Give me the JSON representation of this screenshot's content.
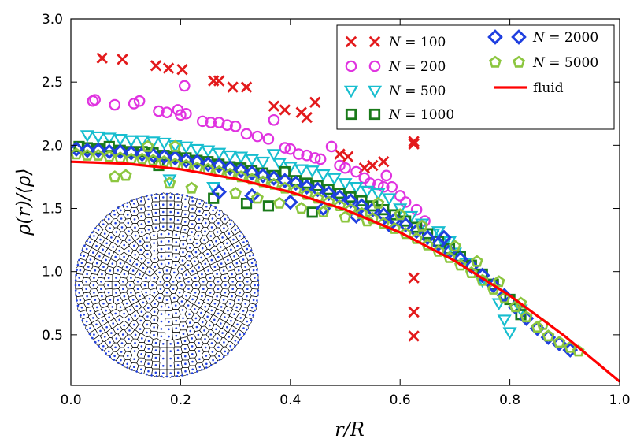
{
  "chart_data": {
    "type": "scatter",
    "xlabel": "r/R",
    "ylabel": "ρ(r)/⟨ρ⟩",
    "xlim": [
      0.0,
      1.0
    ],
    "ylim": [
      0.1,
      3.0
    ],
    "xticks": [
      "0.0",
      "0.2",
      "0.4",
      "0.6",
      "0.8",
      "1.0"
    ],
    "yticks": [
      "0.5",
      "1.0",
      "1.5",
      "2.0",
      "2.5",
      "3.0"
    ],
    "legend_position": "top-right",
    "series": [
      {
        "name": "N = 100",
        "label_var": "N",
        "label_eq": " = 100",
        "marker": "x",
        "color": "#e31a1c",
        "points": [
          [
            0.057,
            2.69
          ],
          [
            0.094,
            2.68
          ],
          [
            0.155,
            2.63
          ],
          [
            0.178,
            2.61
          ],
          [
            0.203,
            2.6
          ],
          [
            0.26,
            2.51
          ],
          [
            0.27,
            2.51
          ],
          [
            0.295,
            2.46
          ],
          [
            0.32,
            2.46
          ],
          [
            0.37,
            2.31
          ],
          [
            0.39,
            2.28
          ],
          [
            0.42,
            2.26
          ],
          [
            0.43,
            2.22
          ],
          [
            0.445,
            2.34
          ],
          [
            0.49,
            1.93
          ],
          [
            0.505,
            1.91
          ],
          [
            0.535,
            1.82
          ],
          [
            0.55,
            1.84
          ],
          [
            0.57,
            1.87
          ],
          [
            0.625,
            2.03
          ],
          [
            0.625,
            2.01
          ],
          [
            0.625,
            0.95
          ],
          [
            0.625,
            0.68
          ],
          [
            0.625,
            0.49
          ]
        ]
      },
      {
        "name": "N = 200",
        "label_var": "N",
        "label_eq": " = 200",
        "marker": "circle",
        "color": "#e033e0",
        "points": [
          [
            0.04,
            2.35
          ],
          [
            0.044,
            2.36
          ],
          [
            0.08,
            2.32
          ],
          [
            0.115,
            2.33
          ],
          [
            0.125,
            2.35
          ],
          [
            0.16,
            2.27
          ],
          [
            0.175,
            2.26
          ],
          [
            0.195,
            2.28
          ],
          [
            0.2,
            2.24
          ],
          [
            0.21,
            2.25
          ],
          [
            0.207,
            2.47
          ],
          [
            0.24,
            2.19
          ],
          [
            0.255,
            2.18
          ],
          [
            0.27,
            2.18
          ],
          [
            0.285,
            2.16
          ],
          [
            0.3,
            2.15
          ],
          [
            0.32,
            2.09
          ],
          [
            0.34,
            2.07
          ],
          [
            0.36,
            2.05
          ],
          [
            0.37,
            2.2
          ],
          [
            0.39,
            1.98
          ],
          [
            0.4,
            1.97
          ],
          [
            0.415,
            1.93
          ],
          [
            0.43,
            1.92
          ],
          [
            0.445,
            1.9
          ],
          [
            0.455,
            1.89
          ],
          [
            0.475,
            1.99
          ],
          [
            0.49,
            1.84
          ],
          [
            0.5,
            1.82
          ],
          [
            0.52,
            1.79
          ],
          [
            0.535,
            1.74
          ],
          [
            0.545,
            1.7
          ],
          [
            0.56,
            1.69
          ],
          [
            0.57,
            1.67
          ],
          [
            0.575,
            1.76
          ],
          [
            0.585,
            1.67
          ],
          [
            0.6,
            1.6
          ],
          [
            0.61,
            1.55
          ],
          [
            0.63,
            1.49
          ],
          [
            0.645,
            1.4
          ]
        ]
      },
      {
        "name": "N = 500",
        "label_var": "N",
        "label_eq": " = 500",
        "marker": "triangle-down",
        "color": "#17becf",
        "points": [
          [
            0.03,
            2.08
          ],
          [
            0.05,
            2.07
          ],
          [
            0.07,
            2.06
          ],
          [
            0.09,
            2.05
          ],
          [
            0.11,
            2.04
          ],
          [
            0.13,
            2.04
          ],
          [
            0.15,
            2.03
          ],
          [
            0.17,
            2.02
          ],
          [
            0.19,
            2.0
          ],
          [
            0.21,
            1.99
          ],
          [
            0.23,
            1.97
          ],
          [
            0.25,
            1.96
          ],
          [
            0.27,
            1.94
          ],
          [
            0.29,
            1.92
          ],
          [
            0.31,
            1.91
          ],
          [
            0.33,
            1.89
          ],
          [
            0.35,
            1.87
          ],
          [
            0.37,
            1.93
          ],
          [
            0.38,
            1.86
          ],
          [
            0.4,
            1.83
          ],
          [
            0.42,
            1.81
          ],
          [
            0.44,
            1.8
          ],
          [
            0.46,
            1.77
          ],
          [
            0.48,
            1.74
          ],
          [
            0.5,
            1.7
          ],
          [
            0.52,
            1.67
          ],
          [
            0.54,
            1.64
          ],
          [
            0.56,
            1.62
          ],
          [
            0.58,
            1.58
          ],
          [
            0.6,
            1.5
          ],
          [
            0.62,
            1.44
          ],
          [
            0.64,
            1.38
          ],
          [
            0.66,
            1.3
          ],
          [
            0.68,
            1.22
          ],
          [
            0.7,
            1.15
          ],
          [
            0.72,
            1.07
          ],
          [
            0.75,
            0.93
          ],
          [
            0.78,
            0.75
          ],
          [
            0.8,
            0.52
          ],
          [
            0.79,
            0.62
          ],
          [
            0.82,
            0.7
          ],
          [
            0.69,
            1.24
          ],
          [
            0.26,
            1.67
          ],
          [
            0.18,
            1.73
          ],
          [
            0.67,
            1.32
          ]
        ]
      },
      {
        "name": "N = 1000",
        "label_var": "N",
        "label_eq": " = 1000",
        "marker": "square",
        "color": "#1a7a1a",
        "points": [
          [
            0.015,
            1.99
          ],
          [
            0.03,
            1.98
          ],
          [
            0.05,
            1.97
          ],
          [
            0.07,
            1.99
          ],
          [
            0.09,
            1.96
          ],
          [
            0.11,
            1.95
          ],
          [
            0.13,
            1.95
          ],
          [
            0.15,
            1.94
          ],
          [
            0.17,
            1.92
          ],
          [
            0.19,
            1.91
          ],
          [
            0.21,
            1.9
          ],
          [
            0.23,
            1.88
          ],
          [
            0.25,
            1.87
          ],
          [
            0.27,
            1.85
          ],
          [
            0.29,
            1.83
          ],
          [
            0.31,
            1.82
          ],
          [
            0.33,
            1.8
          ],
          [
            0.35,
            1.78
          ],
          [
            0.37,
            1.76
          ],
          [
            0.39,
            1.79
          ],
          [
            0.41,
            1.72
          ],
          [
            0.43,
            1.7
          ],
          [
            0.45,
            1.68
          ],
          [
            0.47,
            1.65
          ],
          [
            0.49,
            1.62
          ],
          [
            0.51,
            1.59
          ],
          [
            0.53,
            1.56
          ],
          [
            0.55,
            1.52
          ],
          [
            0.57,
            1.49
          ],
          [
            0.59,
            1.45
          ],
          [
            0.61,
            1.4
          ],
          [
            0.63,
            1.35
          ],
          [
            0.65,
            1.3
          ],
          [
            0.67,
            1.24
          ],
          [
            0.69,
            1.18
          ],
          [
            0.71,
            1.12
          ],
          [
            0.73,
            1.05
          ],
          [
            0.75,
            0.98
          ],
          [
            0.77,
            0.9
          ],
          [
            0.8,
            0.78
          ],
          [
            0.82,
            0.66
          ],
          [
            0.16,
            1.84
          ],
          [
            0.26,
            1.58
          ],
          [
            0.32,
            1.54
          ],
          [
            0.36,
            1.52
          ],
          [
            0.44,
            1.47
          ]
        ]
      },
      {
        "name": "N = 2000",
        "label_var": "N",
        "label_eq": " = 2000",
        "marker": "diamond",
        "color": "#1f3fe0",
        "points": [
          [
            0.01,
            1.97
          ],
          [
            0.03,
            1.96
          ],
          [
            0.05,
            1.96
          ],
          [
            0.07,
            1.95
          ],
          [
            0.09,
            1.95
          ],
          [
            0.11,
            1.94
          ],
          [
            0.13,
            1.93
          ],
          [
            0.15,
            1.92
          ],
          [
            0.17,
            1.91
          ],
          [
            0.19,
            1.9
          ],
          [
            0.21,
            1.88
          ],
          [
            0.23,
            1.87
          ],
          [
            0.25,
            1.85
          ],
          [
            0.27,
            1.84
          ],
          [
            0.29,
            1.82
          ],
          [
            0.31,
            1.8
          ],
          [
            0.33,
            1.78
          ],
          [
            0.35,
            1.76
          ],
          [
            0.37,
            1.74
          ],
          [
            0.39,
            1.72
          ],
          [
            0.41,
            1.7
          ],
          [
            0.43,
            1.67
          ],
          [
            0.45,
            1.65
          ],
          [
            0.47,
            1.62
          ],
          [
            0.49,
            1.59
          ],
          [
            0.51,
            1.56
          ],
          [
            0.53,
            1.52
          ],
          [
            0.55,
            1.49
          ],
          [
            0.57,
            1.45
          ],
          [
            0.59,
            1.41
          ],
          [
            0.61,
            1.37
          ],
          [
            0.63,
            1.32
          ],
          [
            0.65,
            1.27
          ],
          [
            0.67,
            1.22
          ],
          [
            0.69,
            1.16
          ],
          [
            0.71,
            1.1
          ],
          [
            0.73,
            1.04
          ],
          [
            0.75,
            0.97
          ],
          [
            0.77,
            0.89
          ],
          [
            0.79,
            0.81
          ],
          [
            0.81,
            0.72
          ],
          [
            0.83,
            0.63
          ],
          [
            0.85,
            0.55
          ],
          [
            0.87,
            0.48
          ],
          [
            0.89,
            0.43
          ],
          [
            0.91,
            0.38
          ],
          [
            0.27,
            1.63
          ],
          [
            0.33,
            1.6
          ],
          [
            0.4,
            1.55
          ],
          [
            0.46,
            1.5
          ],
          [
            0.52,
            1.44
          ],
          [
            0.58,
            1.37
          ],
          [
            0.68,
            1.27
          ]
        ]
      },
      {
        "name": "N = 5000",
        "label_var": "N",
        "label_eq": " = 5000",
        "marker": "pentagon",
        "color": "#8cc63f",
        "points": [
          [
            0.01,
            1.93
          ],
          [
            0.03,
            1.92
          ],
          [
            0.05,
            1.92
          ],
          [
            0.07,
            1.91
          ],
          [
            0.08,
            1.75
          ],
          [
            0.09,
            1.9
          ],
          [
            0.1,
            1.76
          ],
          [
            0.11,
            1.89
          ],
          [
            0.13,
            1.89
          ],
          [
            0.14,
            1.99
          ],
          [
            0.15,
            1.88
          ],
          [
            0.17,
            1.87
          ],
          [
            0.19,
            1.99
          ],
          [
            0.19,
            1.85
          ],
          [
            0.21,
            1.84
          ],
          [
            0.23,
            1.82
          ],
          [
            0.25,
            1.81
          ],
          [
            0.27,
            1.79
          ],
          [
            0.29,
            1.77
          ],
          [
            0.31,
            1.75
          ],
          [
            0.33,
            1.73
          ],
          [
            0.35,
            1.71
          ],
          [
            0.37,
            1.69
          ],
          [
            0.39,
            1.66
          ],
          [
            0.41,
            1.64
          ],
          [
            0.43,
            1.61
          ],
          [
            0.45,
            1.58
          ],
          [
            0.47,
            1.55
          ],
          [
            0.49,
            1.52
          ],
          [
            0.51,
            1.49
          ],
          [
            0.53,
            1.46
          ],
          [
            0.55,
            1.42
          ],
          [
            0.57,
            1.38
          ],
          [
            0.59,
            1.34
          ],
          [
            0.61,
            1.3
          ],
          [
            0.63,
            1.26
          ],
          [
            0.65,
            1.21
          ],
          [
            0.67,
            1.16
          ],
          [
            0.69,
            1.11
          ],
          [
            0.71,
            1.05
          ],
          [
            0.73,
            0.99
          ],
          [
            0.75,
            0.93
          ],
          [
            0.77,
            0.86
          ],
          [
            0.79,
            0.79
          ],
          [
            0.81,
            0.72
          ],
          [
            0.83,
            0.64
          ],
          [
            0.85,
            0.56
          ],
          [
            0.87,
            0.49
          ],
          [
            0.89,
            0.44
          ],
          [
            0.91,
            0.4
          ],
          [
            0.925,
            0.37
          ],
          [
            0.18,
            1.7
          ],
          [
            0.22,
            1.66
          ],
          [
            0.3,
            1.62
          ],
          [
            0.34,
            1.58
          ],
          [
            0.38,
            1.54
          ],
          [
            0.42,
            1.5
          ],
          [
            0.46,
            1.47
          ],
          [
            0.5,
            1.43
          ],
          [
            0.54,
            1.4
          ],
          [
            0.56,
            1.54
          ],
          [
            0.6,
            1.45
          ],
          [
            0.64,
            1.36
          ],
          [
            0.7,
            1.2
          ],
          [
            0.74,
            1.08
          ],
          [
            0.78,
            0.92
          ],
          [
            0.82,
            0.75
          ],
          [
            0.86,
            0.58
          ]
        ]
      },
      {
        "name": "fluid",
        "label_var": "",
        "label_eq": "fluid",
        "marker": "line",
        "color": "#ff0000",
        "x": [
          0.0,
          0.1,
          0.2,
          0.3,
          0.4,
          0.5,
          0.6,
          0.7,
          0.8,
          0.9,
          1.0
        ],
        "y": [
          1.87,
          1.855,
          1.81,
          1.735,
          1.63,
          1.49,
          1.31,
          1.085,
          0.81,
          0.49,
          0.13
        ]
      }
    ],
    "inset": {
      "description_free": true,
      "type": "voronoi-disk",
      "dot_color": "#1f3fe0",
      "edge_color": "#000000"
    }
  }
}
